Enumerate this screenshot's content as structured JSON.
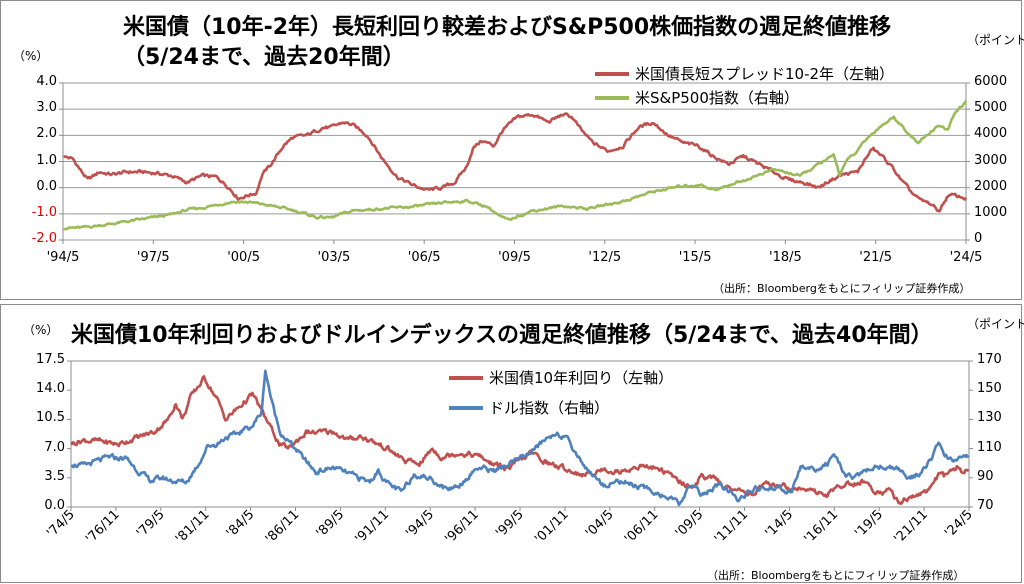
{
  "chart_data": [
    {
      "type": "line",
      "title": "米国債（10年-2年）長短利回り較差およびS&P500株価指数の週足終値推移",
      "subtitle": "（5/24まで、過去20年間）",
      "left_unit": "（%）",
      "right_unit": "（ポイント）",
      "y_left_ticks": [
        "4.0",
        "3.0",
        "2.0",
        "1.0",
        "0.0",
        "-1.0",
        "-2.0"
      ],
      "y_left_range": [
        -2.0,
        4.0
      ],
      "y_right_ticks": [
        "6000",
        "5000",
        "4000",
        "3000",
        "2000",
        "1000",
        "0"
      ],
      "y_right_range": [
        0,
        6000
      ],
      "x_labels": [
        "'94/5",
        "'97/5",
        "'00/5",
        "'03/5",
        "'06/5",
        "'09/5",
        "'12/5",
        "'15/5",
        "'18/5",
        "'21/5",
        "'24/5"
      ],
      "x_range": [
        1994.375,
        2024.4
      ],
      "grid": true,
      "legend_position": "top-right",
      "source": "（出所：Bloombergをもとにフィリップ証券作成）",
      "series": [
        {
          "name": "米国債長短スプレッド10-2年（左軸）",
          "axis": "left",
          "color": "#c0504d",
          "x": [
            1994.4,
            1994.7,
            1995.0,
            1995.2,
            1995.6,
            1996.0,
            1996.5,
            1997.0,
            1997.5,
            1998.0,
            1998.5,
            1999.0,
            1999.5,
            1999.9,
            2000.2,
            2000.5,
            2000.8,
            2001.0,
            2001.3,
            2001.7,
            2002.0,
            2002.5,
            2003.0,
            2003.3,
            2003.7,
            2004.0,
            2004.5,
            2005.0,
            2005.5,
            2006.0,
            2006.5,
            2007.0,
            2007.4,
            2007.8,
            2008.0,
            2008.3,
            2008.7,
            2009.0,
            2009.5,
            2010.0,
            2010.5,
            2011.0,
            2011.3,
            2011.6,
            2012.0,
            2012.5,
            2013.0,
            2013.5,
            2014.0,
            2014.5,
            2015.0,
            2015.5,
            2016.0,
            2016.5,
            2017.0,
            2017.5,
            2018.0,
            2018.5,
            2019.0,
            2019.5,
            2019.9,
            2020.3,
            2020.8,
            2021.0,
            2021.3,
            2021.7,
            2022.0,
            2022.3,
            2022.6,
            2022.9,
            2023.2,
            2023.5,
            2023.8,
            2024.0,
            2024.4
          ],
          "y": [
            1.2,
            1.1,
            0.6,
            0.3,
            0.6,
            0.5,
            0.6,
            0.6,
            0.55,
            0.45,
            0.2,
            0.45,
            0.4,
            0.0,
            -0.4,
            -0.3,
            -0.2,
            0.5,
            0.9,
            1.6,
            1.9,
            2.0,
            2.3,
            2.3,
            2.5,
            2.4,
            2.0,
            1.1,
            0.4,
            0.1,
            -0.1,
            0.0,
            0.2,
            0.8,
            1.5,
            1.8,
            1.6,
            2.2,
            2.7,
            2.8,
            2.5,
            2.8,
            2.7,
            2.2,
            1.7,
            1.4,
            1.6,
            2.3,
            2.5,
            2.0,
            1.7,
            1.6,
            1.2,
            0.9,
            1.2,
            0.9,
            0.6,
            0.3,
            0.2,
            0.0,
            0.3,
            0.5,
            0.6,
            1.0,
            1.5,
            1.1,
            0.7,
            0.2,
            -0.2,
            -0.5,
            -0.6,
            -0.9,
            -0.3,
            -0.3,
            -0.4
          ]
        },
        {
          "name": "米S&P500指数（右軸）",
          "axis": "right",
          "color": "#9bbb59",
          "x": [
            1994.4,
            1995.0,
            1996.0,
            1997.0,
            1998.0,
            1998.5,
            1999.0,
            2000.0,
            2000.5,
            2001.0,
            2002.0,
            2002.8,
            2003.3,
            2004.0,
            2005.0,
            2006.0,
            2007.0,
            2007.8,
            2008.5,
            2008.9,
            2009.2,
            2009.5,
            2010.0,
            2011.0,
            2011.8,
            2012.5,
            2013.0,
            2014.0,
            2015.0,
            2015.6,
            2016.1,
            2016.5,
            2017.0,
            2018.0,
            2018.2,
            2018.9,
            2019.5,
            2020.0,
            2020.2,
            2020.4,
            2020.8,
            2021.0,
            2021.5,
            2022.0,
            2022.4,
            2022.8,
            2023.0,
            2023.5,
            2023.8,
            2024.0,
            2024.4
          ],
          "y": [
            460,
            470,
            620,
            790,
            980,
            1150,
            1230,
            1460,
            1450,
            1370,
            1150,
            870,
            860,
            1120,
            1200,
            1270,
            1420,
            1500,
            1270,
            900,
            750,
            920,
            1120,
            1300,
            1200,
            1360,
            1480,
            1850,
            2070,
            2100,
            1900,
            2100,
            2270,
            2700,
            2650,
            2450,
            2900,
            3230,
            2500,
            3000,
            3400,
            3750,
            4300,
            4700,
            4200,
            3700,
            3900,
            4400,
            4200,
            4800,
            5300
          ]
        }
      ]
    },
    {
      "type": "line",
      "title": "米国債10年利回りおよびドルインデックスの週足終値推移（5/24まで、過去40年間）",
      "left_unit": "（%）",
      "right_unit": "（ポイント）",
      "y_left_ticks": [
        "17.5",
        "14.0",
        "10.5",
        "7.0",
        "3.5",
        "0.0"
      ],
      "y_left_range": [
        0,
        17.5
      ],
      "y_right_ticks": [
        "170",
        "150",
        "130",
        "110",
        "90",
        "70"
      ],
      "y_right_range": [
        70,
        170
      ],
      "x_labels": [
        "'74/5",
        "'76/11",
        "'79/5",
        "'81/11",
        "'84/5",
        "'86/11",
        "'89/5",
        "'91/11",
        "'94/5",
        "'96/11",
        "'99/5",
        "'01/11",
        "'04/5",
        "'06/11",
        "'09/5",
        "'11/11",
        "'14/5",
        "'16/11",
        "'19/5",
        "'21/11",
        "'24/5"
      ],
      "x_range": [
        1974.375,
        2024.4
      ],
      "grid": false,
      "legend_position": "top-center",
      "source": "（出所：Bloombergをもとにフィリップ証券作成）",
      "series": [
        {
          "name": "米国債10年利回り（左軸）",
          "axis": "left",
          "color": "#c0504d",
          "x": [
            1974.4,
            1975.0,
            1976.0,
            1977.0,
            1978.0,
            1979.0,
            1979.8,
            1980.2,
            1980.6,
            1981.0,
            1981.8,
            1982.5,
            1983.0,
            1983.5,
            1984.5,
            1985.0,
            1986.0,
            1986.5,
            1987.5,
            1988.0,
            1989.0,
            1989.8,
            1990.5,
            1991.0,
            1992.0,
            1993.0,
            1993.8,
            1994.5,
            1995.0,
            1996.0,
            1997.0,
            1998.0,
            1998.8,
            1999.5,
            2000.0,
            2001.0,
            2002.0,
            2003.0,
            2004.0,
            2005.0,
            2006.0,
            2007.0,
            2008.0,
            2008.9,
            2009.5,
            2010.0,
            2011.0,
            2012.5,
            2013.0,
            2014.0,
            2015.0,
            2016.5,
            2017.0,
            2018.5,
            2019.0,
            2020.0,
            2020.5,
            2021.5,
            2022.0,
            2022.8,
            2023.0,
            2023.8,
            2024.0,
            2024.4
          ],
          "y": [
            7.6,
            8.0,
            7.9,
            7.5,
            8.3,
            9.0,
            10.5,
            12.5,
            10.5,
            13.0,
            15.5,
            13.0,
            10.5,
            11.5,
            13.5,
            11.5,
            7.5,
            7.0,
            9.0,
            8.9,
            9.0,
            8.0,
            8.5,
            8.0,
            7.0,
            5.5,
            5.2,
            7.0,
            6.0,
            6.5,
            6.2,
            5.0,
            4.6,
            5.8,
            6.5,
            5.2,
            4.5,
            3.8,
            4.5,
            4.2,
            4.9,
            4.7,
            3.5,
            2.3,
            3.6,
            3.6,
            2.2,
            1.6,
            2.6,
            2.6,
            2.2,
            1.5,
            2.4,
            3.1,
            2.0,
            1.9,
            0.6,
            1.5,
            1.8,
            4.0,
            3.6,
            4.9,
            4.0,
            4.5
          ]
        },
        {
          "name": "ドル指数（右軸）",
          "axis": "right",
          "color": "#4f81bd",
          "x": [
            1974.4,
            1975.0,
            1975.5,
            1976.5,
            1977.5,
            1978.0,
            1978.8,
            1979.5,
            1980.0,
            1980.8,
            1981.5,
            1982.0,
            1982.5,
            1983.0,
            1983.5,
            1984.0,
            1984.5,
            1985.0,
            1985.2,
            1985.6,
            1986.0,
            1987.0,
            1988.0,
            1989.0,
            1990.0,
            1991.0,
            1991.5,
            1992.0,
            1992.8,
            1993.5,
            1994.5,
            1995.3,
            1996.0,
            1997.0,
            1998.0,
            1999.0,
            2000.0,
            2001.0,
            2001.5,
            2002.0,
            2003.0,
            2004.0,
            2005.0,
            2006.0,
            2007.0,
            2008.3,
            2009.0,
            2009.5,
            2010.5,
            2011.5,
            2012.5,
            2013.5,
            2014.5,
            2015.0,
            2016.0,
            2016.9,
            2017.5,
            2018.0,
            2019.0,
            2020.0,
            2020.5,
            2021.0,
            2021.5,
            2022.0,
            2022.75,
            2023.0,
            2023.5,
            2024.0,
            2024.4
          ],
          "y": [
            100,
            98,
            100,
            104,
            103,
            96,
            88,
            90,
            88,
            87,
            100,
            112,
            113,
            118,
            119,
            123,
            126,
            135,
            164,
            140,
            122,
            108,
            94,
            97,
            92,
            87,
            95,
            86,
            80,
            93,
            89,
            82,
            85,
            97,
            95,
            100,
            108,
            118,
            121,
            116,
            98,
            85,
            88,
            84,
            80,
            72,
            87,
            78,
            85,
            76,
            82,
            83,
            80,
            97,
            96,
            103,
            93,
            90,
            97,
            98,
            95,
            90,
            92,
            96,
            114,
            104,
            103,
            104,
            105
          ]
        }
      ]
    }
  ]
}
